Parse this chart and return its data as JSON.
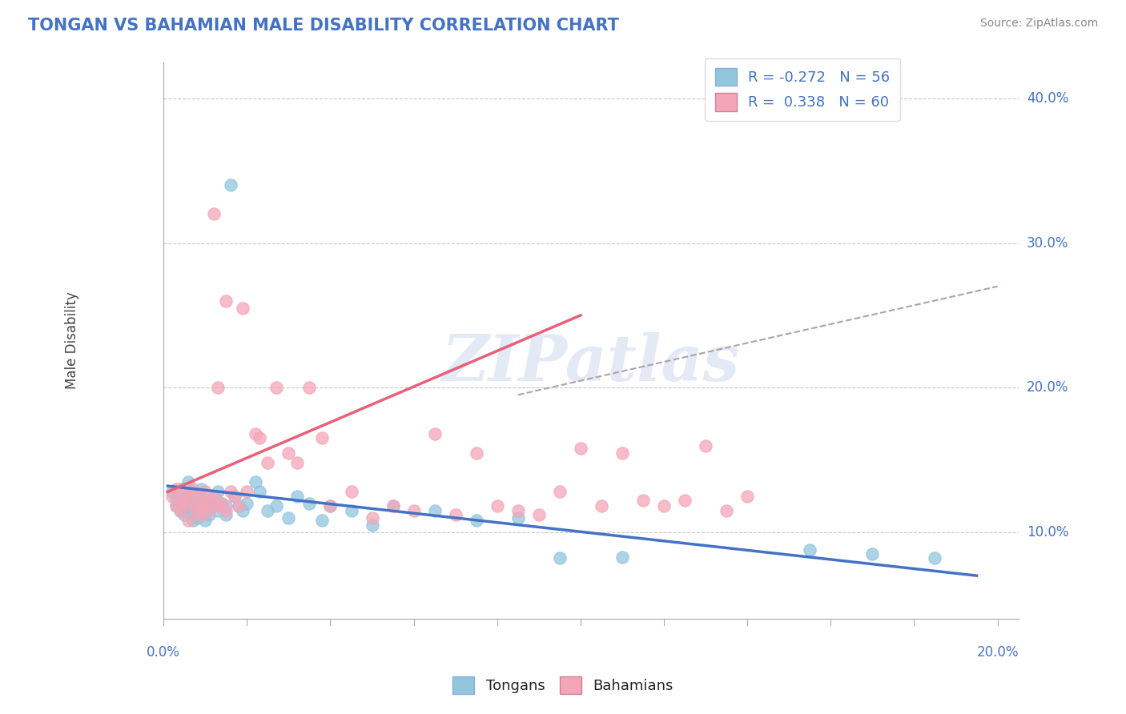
{
  "title": "TONGAN VS BAHAMIAN MALE DISABILITY CORRELATION CHART",
  "source": "Source: ZipAtlas.com",
  "ylabel": "Male Disability",
  "right_yticks": [
    "10.0%",
    "20.0%",
    "30.0%",
    "40.0%"
  ],
  "right_ytick_vals": [
    0.1,
    0.2,
    0.3,
    0.4
  ],
  "xlim": [
    0.0,
    0.205
  ],
  "ylim": [
    0.04,
    0.425
  ],
  "legend_blue_label": "R = -0.272   N = 56",
  "legend_pink_label": "R =  0.338   N = 60",
  "tongans_color": "#92c5de",
  "bahamians_color": "#f4a6b8",
  "tongans_line_color": "#4472c4",
  "bahamians_line_color": "#e8607a",
  "dashed_line_color": "#c0a0a0",
  "background_color": "#ffffff",
  "grid_color": "#c8c8c8",
  "title_color": "#4472c4",
  "source_color": "#888888",
  "watermark": "ZIPatlas",
  "tongans_x": [
    0.002,
    0.003,
    0.003,
    0.004,
    0.004,
    0.005,
    0.005,
    0.005,
    0.006,
    0.006,
    0.006,
    0.007,
    0.007,
    0.007,
    0.008,
    0.008,
    0.008,
    0.009,
    0.009,
    0.01,
    0.01,
    0.01,
    0.011,
    0.011,
    0.012,
    0.012,
    0.013,
    0.013,
    0.014,
    0.015,
    0.015,
    0.016,
    0.017,
    0.018,
    0.019,
    0.02,
    0.022,
    0.023,
    0.025,
    0.027,
    0.03,
    0.032,
    0.035,
    0.038,
    0.04,
    0.045,
    0.05,
    0.055,
    0.065,
    0.075,
    0.085,
    0.095,
    0.11,
    0.155,
    0.17,
    0.185
  ],
  "tongans_y": [
    0.128,
    0.122,
    0.118,
    0.13,
    0.115,
    0.125,
    0.118,
    0.112,
    0.135,
    0.12,
    0.113,
    0.128,
    0.118,
    0.108,
    0.125,
    0.115,
    0.11,
    0.122,
    0.13,
    0.12,
    0.115,
    0.108,
    0.118,
    0.112,
    0.125,
    0.118,
    0.128,
    0.115,
    0.12,
    0.118,
    0.112,
    0.34,
    0.125,
    0.118,
    0.115,
    0.12,
    0.135,
    0.128,
    0.115,
    0.118,
    0.11,
    0.125,
    0.12,
    0.108,
    0.118,
    0.115,
    0.105,
    0.118,
    0.115,
    0.108,
    0.11,
    0.082,
    0.083,
    0.088,
    0.085,
    0.082
  ],
  "bahamians_x": [
    0.002,
    0.003,
    0.003,
    0.004,
    0.004,
    0.005,
    0.005,
    0.006,
    0.006,
    0.007,
    0.007,
    0.008,
    0.008,
    0.009,
    0.009,
    0.01,
    0.01,
    0.011,
    0.011,
    0.012,
    0.012,
    0.013,
    0.013,
    0.014,
    0.015,
    0.015,
    0.016,
    0.017,
    0.018,
    0.019,
    0.02,
    0.022,
    0.023,
    0.025,
    0.027,
    0.03,
    0.032,
    0.035,
    0.038,
    0.04,
    0.045,
    0.05,
    0.055,
    0.06,
    0.065,
    0.07,
    0.075,
    0.08,
    0.085,
    0.09,
    0.095,
    0.1,
    0.105,
    0.11,
    0.115,
    0.12,
    0.125,
    0.13,
    0.135,
    0.14
  ],
  "bahamians_y": [
    0.125,
    0.118,
    0.13,
    0.122,
    0.115,
    0.128,
    0.12,
    0.108,
    0.125,
    0.13,
    0.118,
    0.115,
    0.125,
    0.12,
    0.112,
    0.128,
    0.118,
    0.122,
    0.115,
    0.32,
    0.125,
    0.118,
    0.2,
    0.12,
    0.26,
    0.115,
    0.128,
    0.125,
    0.118,
    0.255,
    0.128,
    0.168,
    0.165,
    0.148,
    0.2,
    0.155,
    0.148,
    0.2,
    0.165,
    0.118,
    0.128,
    0.11,
    0.118,
    0.115,
    0.168,
    0.112,
    0.155,
    0.118,
    0.115,
    0.112,
    0.128,
    0.158,
    0.118,
    0.155,
    0.122,
    0.118,
    0.122,
    0.16,
    0.115,
    0.125
  ],
  "tongans_line_x": [
    0.001,
    0.195
  ],
  "tongans_line_y": [
    0.132,
    0.07
  ],
  "bahamians_line_x": [
    0.001,
    0.1
  ],
  "bahamians_line_y": [
    0.128,
    0.25
  ],
  "dashed_line_x": [
    0.085,
    0.2
  ],
  "dashed_line_y": [
    0.195,
    0.27
  ]
}
